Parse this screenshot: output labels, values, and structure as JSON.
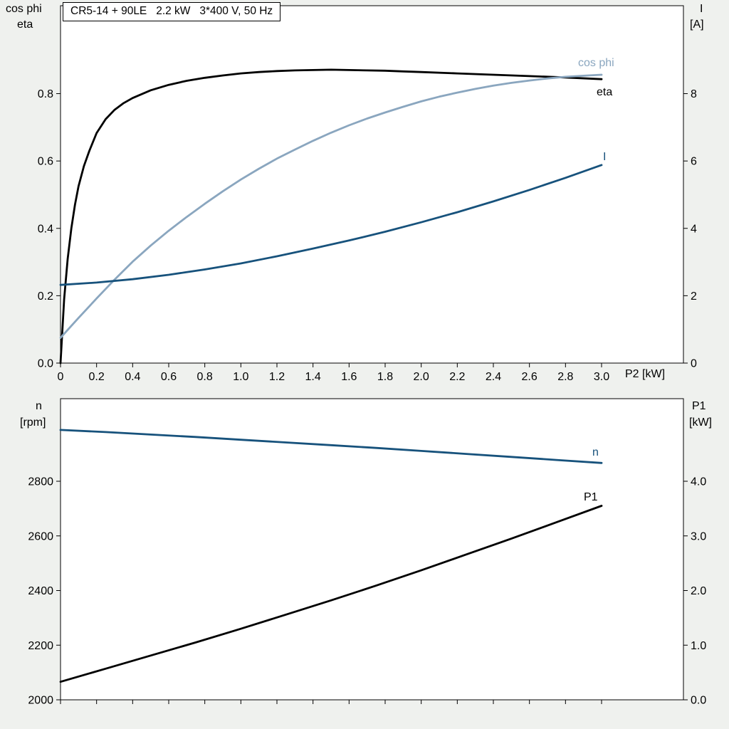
{
  "page": {
    "background": "#eff1ee",
    "plot_background": "#ffffff"
  },
  "colors": {
    "black": "#000000",
    "dark_blue": "#17527c",
    "light_blue": "#8aa6bf",
    "frame": "#000000"
  },
  "chart_data": [
    {
      "type": "line",
      "title": "CR5-14 + 90LE   2.2 kW   3*400 V, 50 Hz",
      "x_axis": {
        "label": "P2 [kW]",
        "range": [
          0,
          3.0
        ],
        "ticks": [
          0,
          0.2,
          0.4,
          0.6,
          0.8,
          1.0,
          1.2,
          1.4,
          1.6,
          1.8,
          2.0,
          2.2,
          2.4,
          2.6,
          2.8,
          3.0
        ],
        "tick_labels": [
          "0",
          "0.2",
          "0.4",
          "0.6",
          "0.8",
          "1.0",
          "1.2",
          "1.4",
          "1.6",
          "1.8",
          "2.0",
          "2.2",
          "2.4",
          "2.6",
          "2.8",
          "3.0"
        ]
      },
      "y_left": {
        "header_line1": "cos phi",
        "header_line2": "eta",
        "ticks": [
          0.0,
          0.2,
          0.4,
          0.6,
          0.8
        ],
        "tick_labels": [
          "0.0",
          "0.2",
          "0.4",
          "0.6",
          "0.8"
        ]
      },
      "y_right": {
        "header_line1": "I",
        "header_line2": "[A]",
        "ticks": [
          0,
          2,
          4,
          6,
          8
        ],
        "tick_labels": [
          "0",
          "2",
          "4",
          "6",
          "8"
        ]
      },
      "series": [
        {
          "name": "eta",
          "label": "eta",
          "axis": "left",
          "color_key": "black",
          "points": [
            [
              0,
              0
            ],
            [
              0.02,
              0.19
            ],
            [
              0.04,
              0.31
            ],
            [
              0.06,
              0.4
            ],
            [
              0.08,
              0.47
            ],
            [
              0.1,
              0.525
            ],
            [
              0.13,
              0.585
            ],
            [
              0.16,
              0.63
            ],
            [
              0.2,
              0.683
            ],
            [
              0.25,
              0.724
            ],
            [
              0.3,
              0.752
            ],
            [
              0.35,
              0.772
            ],
            [
              0.4,
              0.787
            ],
            [
              0.5,
              0.81
            ],
            [
              0.6,
              0.826
            ],
            [
              0.7,
              0.838
            ],
            [
              0.8,
              0.847
            ],
            [
              0.9,
              0.854
            ],
            [
              1.0,
              0.86
            ],
            [
              1.1,
              0.864
            ],
            [
              1.2,
              0.867
            ],
            [
              1.3,
              0.869
            ],
            [
              1.4,
              0.87
            ],
            [
              1.5,
              0.871
            ],
            [
              1.6,
              0.87
            ],
            [
              1.7,
              0.869
            ],
            [
              1.8,
              0.868
            ],
            [
              1.9,
              0.866
            ],
            [
              2.0,
              0.864
            ],
            [
              2.2,
              0.86
            ],
            [
              2.4,
              0.856
            ],
            [
              2.6,
              0.852
            ],
            [
              2.8,
              0.848
            ],
            [
              3.0,
              0.843
            ]
          ]
        },
        {
          "name": "cos phi",
          "label": "cos phi",
          "axis": "left",
          "color_key": "light_blue",
          "points": [
            [
              0,
              0.075
            ],
            [
              0.1,
              0.134
            ],
            [
              0.2,
              0.192
            ],
            [
              0.3,
              0.248
            ],
            [
              0.4,
              0.301
            ],
            [
              0.5,
              0.349
            ],
            [
              0.6,
              0.393
            ],
            [
              0.7,
              0.434
            ],
            [
              0.8,
              0.473
            ],
            [
              0.9,
              0.51
            ],
            [
              1.0,
              0.545
            ],
            [
              1.1,
              0.577
            ],
            [
              1.2,
              0.607
            ],
            [
              1.3,
              0.634
            ],
            [
              1.4,
              0.66
            ],
            [
              1.5,
              0.684
            ],
            [
              1.6,
              0.706
            ],
            [
              1.7,
              0.726
            ],
            [
              1.8,
              0.744
            ],
            [
              1.9,
              0.761
            ],
            [
              2.0,
              0.777
            ],
            [
              2.1,
              0.791
            ],
            [
              2.2,
              0.803
            ],
            [
              2.3,
              0.814
            ],
            [
              2.4,
              0.824
            ],
            [
              2.5,
              0.832
            ],
            [
              2.6,
              0.839
            ],
            [
              2.7,
              0.845
            ],
            [
              2.8,
              0.85
            ],
            [
              2.9,
              0.853
            ],
            [
              3.0,
              0.856
            ]
          ]
        },
        {
          "name": "I",
          "label": "I",
          "axis": "right",
          "color_key": "dark_blue",
          "points": [
            [
              0,
              2.32
            ],
            [
              0.2,
              2.39
            ],
            [
              0.4,
              2.49
            ],
            [
              0.6,
              2.62
            ],
            [
              0.8,
              2.78
            ],
            [
              1.0,
              2.96
            ],
            [
              1.2,
              3.17
            ],
            [
              1.4,
              3.4
            ],
            [
              1.6,
              3.64
            ],
            [
              1.8,
              3.9
            ],
            [
              2.0,
              4.18
            ],
            [
              2.2,
              4.48
            ],
            [
              2.4,
              4.8
            ],
            [
              2.6,
              5.14
            ],
            [
              2.8,
              5.5
            ],
            [
              3.0,
              5.88
            ]
          ]
        }
      ]
    },
    {
      "type": "line",
      "x_axis": {
        "label": "",
        "range": [
          0,
          3.0
        ],
        "ticks": [
          0,
          0.2,
          0.4,
          0.6,
          0.8,
          1.0,
          1.2,
          1.4,
          1.6,
          1.8,
          2.0,
          2.2,
          2.4,
          2.6,
          2.8,
          3.0
        ],
        "tick_labels": []
      },
      "y_left": {
        "header_line1": "n",
        "header_line2": "[rpm]",
        "ticks": [
          2000,
          2200,
          2400,
          2600,
          2800
        ],
        "tick_labels": [
          "2000",
          "2200",
          "2400",
          "2600",
          "2800"
        ]
      },
      "y_right": {
        "header_line1": "P1",
        "header_line2": "[kW]",
        "ticks": [
          0.0,
          1.0,
          2.0,
          3.0,
          4.0
        ],
        "tick_labels": [
          "0.0",
          "1.0",
          "2.0",
          "3.0",
          "4.0"
        ]
      },
      "series": [
        {
          "name": "n",
          "label": "n",
          "axis": "left",
          "color_key": "dark_blue",
          "points": [
            [
              0,
              2988
            ],
            [
              0.25,
              2980
            ],
            [
              0.5,
              2971
            ],
            [
              0.75,
              2962
            ],
            [
              1.0,
              2952
            ],
            [
              1.25,
              2942
            ],
            [
              1.5,
              2932
            ],
            [
              1.75,
              2922
            ],
            [
              2.0,
              2911
            ],
            [
              2.25,
              2900
            ],
            [
              2.5,
              2889
            ],
            [
              2.75,
              2878
            ],
            [
              3.0,
              2867
            ]
          ]
        },
        {
          "name": "P1",
          "label": "P1",
          "axis": "right",
          "color_key": "black",
          "points": [
            [
              0,
              0.33
            ],
            [
              0.25,
              0.57
            ],
            [
              0.5,
              0.81
            ],
            [
              0.75,
              1.05
            ],
            [
              1.0,
              1.3
            ],
            [
              1.25,
              1.56
            ],
            [
              1.5,
              1.82
            ],
            [
              1.75,
              2.09
            ],
            [
              2.0,
              2.37
            ],
            [
              2.25,
              2.66
            ],
            [
              2.5,
              2.95
            ],
            [
              2.75,
              3.25
            ],
            [
              3.0,
              3.55
            ]
          ]
        }
      ]
    }
  ]
}
